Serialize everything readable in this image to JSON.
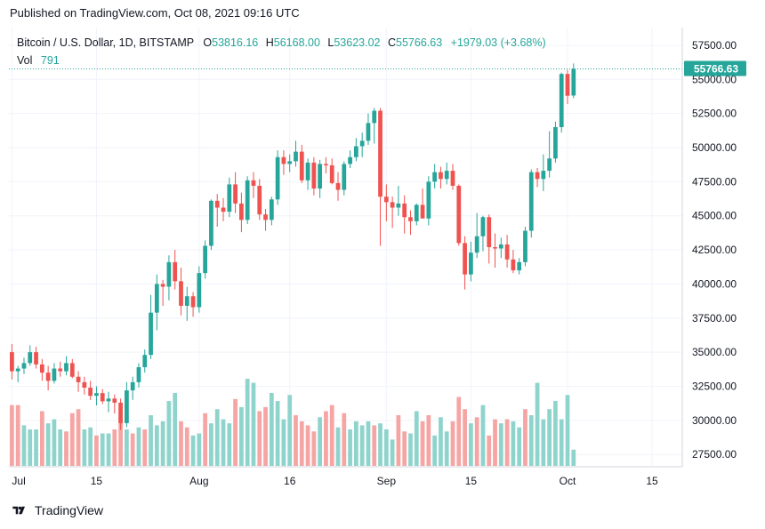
{
  "header": {
    "published_text": "Published on TradingView.com, Oct 08, 2021 09:16 UTC"
  },
  "legend": {
    "symbol": "Bitcoin / U.S. Dollar, 1D, BITSTAMP",
    "o_label": "O",
    "o_value": "53816.16",
    "h_label": "H",
    "h_value": "56168.00",
    "l_label": "L",
    "l_value": "53623.02",
    "c_label": "C",
    "c_value": "55766.63",
    "change": "+1979.03 (+3.68%)",
    "vol_label": "Vol",
    "vol_value": "791"
  },
  "footer": {
    "brand": "TradingView"
  },
  "colors": {
    "up": "#26a69a",
    "down": "#ef5350",
    "vol_up": "#8fd4cc",
    "vol_down": "#f5a5a3",
    "price_badge": "#26a69a",
    "grid": "#f0f3fa",
    "axis_text": "#131722"
  },
  "chart_data": {
    "type": "candlestick",
    "symbol": "Bitcoin / U.S. Dollar",
    "interval": "1D",
    "exchange": "BITSTAMP",
    "y_ticks": [
      "27500.00",
      "30000.00",
      "32500.00",
      "35000.00",
      "37500.00",
      "40000.00",
      "42500.00",
      "45000.00",
      "47500.00",
      "50000.00",
      "52500.00",
      "55000.00",
      "57500.00"
    ],
    "y_range": [
      26600,
      58800
    ],
    "x_ticks": [
      "Jul",
      "15",
      "Aug",
      "16",
      "Sep",
      "15",
      "Oct",
      "15"
    ],
    "x_tick_days": [
      0,
      14,
      31,
      46,
      62,
      76,
      92,
      106
    ],
    "day_range": [
      -0.5,
      111
    ],
    "last_price": "55766.63",
    "last_close": 55766.63,
    "start_date": "2021-07-01",
    "grid": true,
    "candles": [
      [
        35000,
        35600,
        33000,
        33600
      ],
      [
        33600,
        34000,
        32800,
        33800
      ],
      [
        33800,
        34600,
        33400,
        34200
      ],
      [
        34200,
        35500,
        34000,
        35000
      ],
      [
        35000,
        35400,
        33800,
        34100
      ],
      [
        34100,
        34500,
        32900,
        33500
      ],
      [
        33500,
        34000,
        32200,
        32900
      ],
      [
        32900,
        34200,
        32700,
        33800
      ],
      [
        33800,
        34300,
        33200,
        33600
      ],
      [
        33600,
        34700,
        33300,
        34200
      ],
      [
        34200,
        34500,
        33100,
        33200
      ],
      [
        33200,
        33600,
        32100,
        32800
      ],
      [
        32800,
        33200,
        31900,
        32400
      ],
      [
        32400,
        32900,
        31500,
        31800
      ],
      [
        31800,
        32500,
        31100,
        32000
      ],
      [
        32000,
        32300,
        31200,
        31400
      ],
      [
        31400,
        32100,
        30600,
        31600
      ],
      [
        31600,
        31900,
        30500,
        31300
      ],
      [
        31300,
        31600,
        29300,
        29800
      ],
      [
        29800,
        32800,
        29500,
        32200
      ],
      [
        32200,
        33200,
        31500,
        32800
      ],
      [
        32800,
        34200,
        32400,
        33900
      ],
      [
        33900,
        35200,
        33500,
        34800
      ],
      [
        34800,
        39200,
        34500,
        37900
      ],
      [
        37900,
        40700,
        36600,
        40000
      ],
      [
        40000,
        40300,
        38400,
        39800
      ],
      [
        39800,
        42100,
        38800,
        41600
      ],
      [
        41600,
        42500,
        39600,
        40200
      ],
      [
        40200,
        41200,
        37700,
        38400
      ],
      [
        38400,
        39800,
        37300,
        39100
      ],
      [
        39100,
        39400,
        37600,
        38300
      ],
      [
        38300,
        41300,
        37900,
        40800
      ],
      [
        40800,
        43200,
        40400,
        42800
      ],
      [
        42800,
        46200,
        42500,
        46100
      ],
      [
        46100,
        46600,
        44200,
        45600
      ],
      [
        45600,
        46300,
        44600,
        45300
      ],
      [
        45300,
        47800,
        44900,
        47300
      ],
      [
        47300,
        48200,
        45200,
        45900
      ],
      [
        45900,
        46700,
        43800,
        44700
      ],
      [
        44700,
        47900,
        44400,
        47600
      ],
      [
        47600,
        48200,
        46300,
        47200
      ],
      [
        47200,
        47700,
        44700,
        45100
      ],
      [
        45100,
        45500,
        43900,
        44700
      ],
      [
        44700,
        46400,
        44300,
        46200
      ],
      [
        46200,
        49800,
        45800,
        49300
      ],
      [
        49300,
        49800,
        48000,
        48800
      ],
      [
        48800,
        49500,
        48200,
        49000
      ],
      [
        49000,
        50500,
        48600,
        49700
      ],
      [
        49700,
        50200,
        47400,
        47600
      ],
      [
        47600,
        49200,
        46900,
        48900
      ],
      [
        48900,
        49300,
        46500,
        47000
      ],
      [
        47000,
        49100,
        46300,
        48800
      ],
      [
        48800,
        49300,
        48100,
        48700
      ],
      [
        48700,
        49200,
        47300,
        47400
      ],
      [
        47400,
        48200,
        46100,
        46900
      ],
      [
        46900,
        49000,
        46500,
        48800
      ],
      [
        48800,
        49800,
        48500,
        49300
      ],
      [
        49300,
        50700,
        49000,
        50100
      ],
      [
        50100,
        51100,
        49300,
        50500
      ],
      [
        50500,
        52500,
        50200,
        51800
      ],
      [
        51800,
        52900,
        50300,
        52700
      ],
      [
        52700,
        52900,
        42800,
        46400
      ],
      [
        46400,
        47300,
        44600,
        46000
      ],
      [
        46000,
        46400,
        44100,
        45600
      ],
      [
        45600,
        47200,
        45000,
        45900
      ],
      [
        45900,
        46500,
        43700,
        44900
      ],
      [
        44900,
        45400,
        43600,
        44600
      ],
      [
        44600,
        45900,
        44300,
        45800
      ],
      [
        45800,
        47000,
        45100,
        44800
      ],
      [
        44800,
        47900,
        44300,
        47500
      ],
      [
        47500,
        48800,
        47000,
        48200
      ],
      [
        48200,
        48600,
        47000,
        47700
      ],
      [
        47700,
        48900,
        47300,
        48300
      ],
      [
        48300,
        48800,
        46900,
        47200
      ],
      [
        47200,
        47300,
        42800,
        43000
      ],
      [
        43000,
        43500,
        39600,
        40700
      ],
      [
        40700,
        43100,
        40200,
        42300
      ],
      [
        42300,
        45200,
        41900,
        43500
      ],
      [
        43500,
        45000,
        42400,
        44900
      ],
      [
        44900,
        45100,
        41500,
        42700
      ],
      [
        42700,
        43700,
        41200,
        42600
      ],
      [
        42600,
        43400,
        41900,
        42900
      ],
      [
        42900,
        43600,
        41200,
        41800
      ],
      [
        41800,
        42500,
        40800,
        41000
      ],
      [
        41000,
        41900,
        40700,
        41600
      ],
      [
        41600,
        44200,
        41300,
        43900
      ],
      [
        43900,
        48400,
        43400,
        48200
      ],
      [
        48200,
        48500,
        47100,
        47700
      ],
      [
        47700,
        49500,
        46800,
        48300
      ],
      [
        48300,
        51200,
        47800,
        49200
      ],
      [
        49200,
        51900,
        48900,
        51500
      ],
      [
        51500,
        55500,
        51100,
        55400
      ],
      [
        55400,
        55700,
        53200,
        53800
      ],
      [
        53816.16,
        56168.0,
        53623.02,
        55766.63
      ]
    ],
    "volumes": [
      [
        3,
        "down"
      ],
      [
        3,
        "down"
      ],
      [
        2,
        "up"
      ],
      [
        1.8,
        "up"
      ],
      [
        1.8,
        "up"
      ],
      [
        2.7,
        "down"
      ],
      [
        2.1,
        "up"
      ],
      [
        2.3,
        "up"
      ],
      [
        1.8,
        "up"
      ],
      [
        1.7,
        "down"
      ],
      [
        2.6,
        "down"
      ],
      [
        2.8,
        "down"
      ],
      [
        1.8,
        "up"
      ],
      [
        1.9,
        "up"
      ],
      [
        1.5,
        "down"
      ],
      [
        1.6,
        "up"
      ],
      [
        1.6,
        "up"
      ],
      [
        1.8,
        "down"
      ],
      [
        2.4,
        "down"
      ],
      [
        1.8,
        "up"
      ],
      [
        1.6,
        "down"
      ],
      [
        1.9,
        "up"
      ],
      [
        1.8,
        "down"
      ],
      [
        2.5,
        "up"
      ],
      [
        2,
        "up"
      ],
      [
        2.2,
        "up"
      ],
      [
        3.2,
        "up"
      ],
      [
        3.6,
        "up"
      ],
      [
        2.2,
        "down"
      ],
      [
        1.9,
        "down"
      ],
      [
        1.5,
        "up"
      ],
      [
        1.6,
        "up"
      ],
      [
        2.6,
        "down"
      ],
      [
        2.1,
        "up"
      ],
      [
        2.8,
        "up"
      ],
      [
        2.3,
        "up"
      ],
      [
        2.1,
        "up"
      ],
      [
        3.3,
        "down"
      ],
      [
        2.9,
        "up"
      ],
      [
        4.3,
        "up"
      ],
      [
        4.1,
        "up"
      ],
      [
        2.7,
        "down"
      ],
      [
        2.9,
        "down"
      ],
      [
        3.6,
        "up"
      ],
      [
        3.2,
        "up"
      ],
      [
        2.3,
        "up"
      ],
      [
        3.5,
        "up"
      ],
      [
        2.5,
        "down"
      ],
      [
        2.2,
        "down"
      ],
      [
        2,
        "down"
      ],
      [
        1.7,
        "down"
      ],
      [
        2.4,
        "up"
      ],
      [
        2.7,
        "down"
      ],
      [
        3,
        "down"
      ],
      [
        1.9,
        "up"
      ],
      [
        2.6,
        "down"
      ],
      [
        1.8,
        "up"
      ],
      [
        2.2,
        "up"
      ],
      [
        2,
        "up"
      ],
      [
        2.2,
        "up"
      ],
      [
        2,
        "down"
      ],
      [
        2.1,
        "up"
      ],
      [
        1.8,
        "up"
      ],
      [
        1.3,
        "up"
      ],
      [
        2.5,
        "down"
      ],
      [
        1.7,
        "down"
      ],
      [
        1.6,
        "up"
      ],
      [
        2.7,
        "up"
      ],
      [
        2.2,
        "down"
      ],
      [
        2.5,
        "down"
      ],
      [
        1.5,
        "up"
      ],
      [
        2.4,
        "up"
      ],
      [
        1.7,
        "up"
      ],
      [
        2.2,
        "down"
      ],
      [
        3.4,
        "down"
      ],
      [
        2.8,
        "down"
      ],
      [
        2.1,
        "up"
      ],
      [
        2.4,
        "down"
      ],
      [
        3,
        "up"
      ],
      [
        1.5,
        "down"
      ],
      [
        2.3,
        "down"
      ],
      [
        2.1,
        "up"
      ],
      [
        2.3,
        "down"
      ],
      [
        2.2,
        "up"
      ],
      [
        1.9,
        "up"
      ],
      [
        2.8,
        "down"
      ],
      [
        2.5,
        "up"
      ],
      [
        4.1,
        "up"
      ],
      [
        2.3,
        "up"
      ],
      [
        2.8,
        "up"
      ],
      [
        3.2,
        "up"
      ],
      [
        2.3,
        "up"
      ],
      [
        3.5,
        "up"
      ],
      [
        0.8,
        "up"
      ]
    ]
  }
}
